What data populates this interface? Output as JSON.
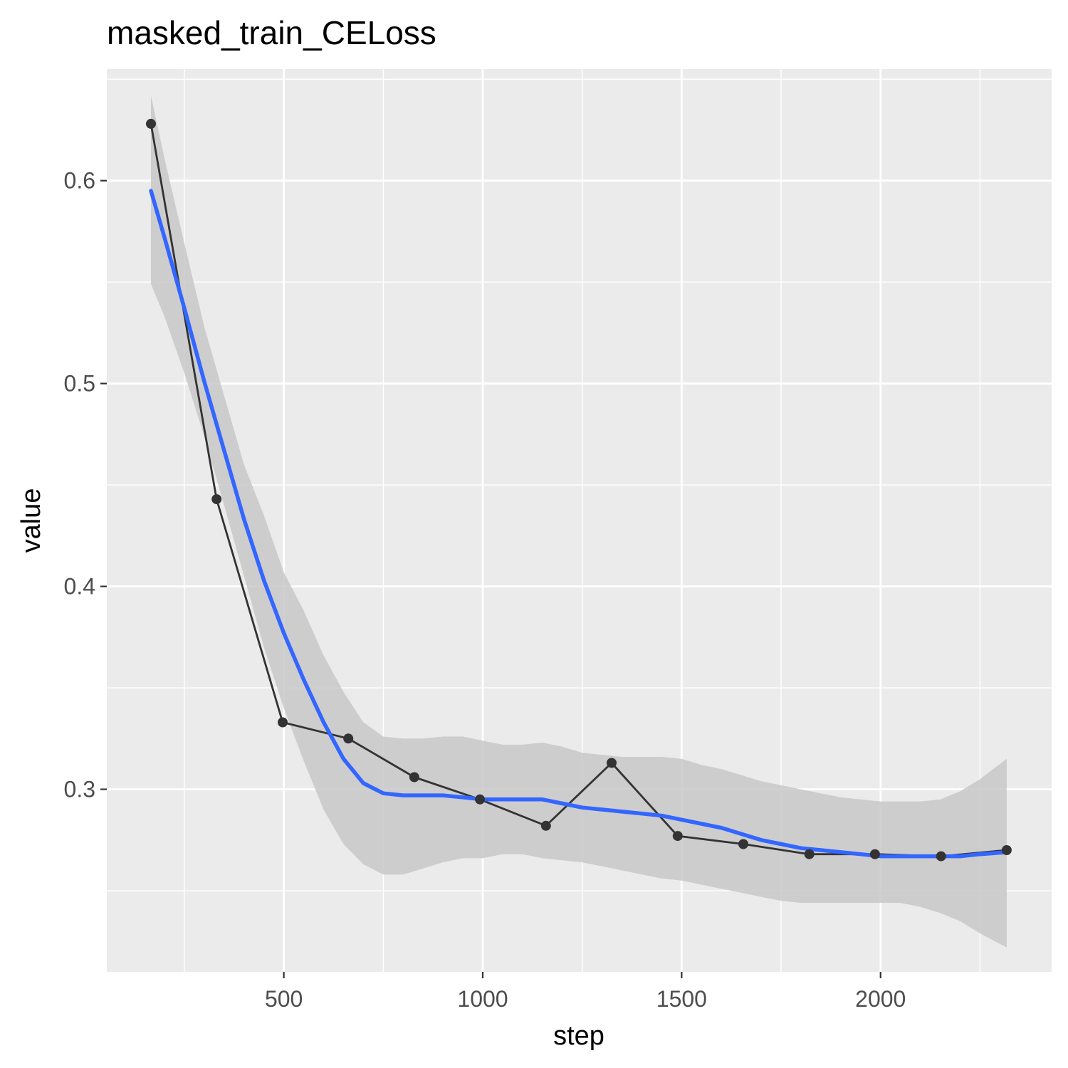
{
  "chart_data": {
    "type": "line",
    "title": "masked_train_CELoss",
    "xlabel": "step",
    "ylabel": "value",
    "xlim": [
      55,
      2430
    ],
    "ylim": [
      0.21,
      0.655
    ],
    "x_ticks": [
      500,
      1000,
      1500,
      2000
    ],
    "y_ticks": [
      0.3,
      0.4,
      0.5,
      0.6
    ],
    "x_tick_labels": [
      "500",
      "1000",
      "1500",
      "2000"
    ],
    "y_tick_labels": [
      "0.3",
      "0.4",
      "0.5",
      "0.6"
    ],
    "x_minor_ticks": [
      250,
      750,
      1250,
      1750,
      2250
    ],
    "y_minor_ticks": [
      0.25,
      0.35,
      0.45,
      0.55,
      0.65
    ],
    "grid": true,
    "legend": "none",
    "colors": {
      "panel_background": "#ebebeb",
      "grid": "#ffffff",
      "points_line": "#333333",
      "smooth_line": "#3366ff",
      "confidence_band": "#c8c8c8"
    },
    "series": [
      {
        "type": "line+points",
        "x": [
          166,
          331,
          497,
          662,
          828,
          993,
          1159,
          1324,
          1490,
          1655,
          1821,
          1986,
          2152,
          2317
        ],
        "y": [
          0.628,
          0.443,
          0.333,
          0.325,
          0.306,
          0.295,
          0.282,
          0.313,
          0.277,
          0.273,
          0.268,
          0.268,
          0.267,
          0.27
        ]
      },
      {
        "type": "smooth",
        "x": [
          166,
          200,
          250,
          300,
          350,
          400,
          450,
          500,
          550,
          600,
          650,
          700,
          750,
          800,
          850,
          900,
          950,
          1000,
          1050,
          1100,
          1150,
          1200,
          1250,
          1300,
          1350,
          1400,
          1450,
          1500,
          1550,
          1600,
          1650,
          1700,
          1750,
          1800,
          1850,
          1900,
          1950,
          2000,
          2050,
          2100,
          2150,
          2200,
          2250,
          2317
        ],
        "y": [
          0.595,
          0.572,
          0.537,
          0.501,
          0.467,
          0.433,
          0.403,
          0.377,
          0.354,
          0.333,
          0.315,
          0.303,
          0.298,
          0.297,
          0.297,
          0.297,
          0.296,
          0.295,
          0.295,
          0.295,
          0.295,
          0.293,
          0.291,
          0.29,
          0.289,
          0.288,
          0.287,
          0.285,
          0.283,
          0.281,
          0.278,
          0.275,
          0.273,
          0.271,
          0.27,
          0.269,
          0.268,
          0.267,
          0.267,
          0.267,
          0.267,
          0.267,
          0.268,
          0.269
        ],
        "lower": [
          0.549,
          0.533,
          0.505,
          0.474,
          0.44,
          0.405,
          0.37,
          0.34,
          0.314,
          0.29,
          0.273,
          0.263,
          0.258,
          0.258,
          0.261,
          0.264,
          0.266,
          0.266,
          0.268,
          0.268,
          0.266,
          0.265,
          0.264,
          0.262,
          0.26,
          0.258,
          0.256,
          0.255,
          0.253,
          0.251,
          0.249,
          0.247,
          0.245,
          0.244,
          0.244,
          0.244,
          0.244,
          0.244,
          0.244,
          0.242,
          0.239,
          0.235,
          0.229,
          0.222
        ],
        "upper": [
          0.642,
          0.611,
          0.569,
          0.528,
          0.494,
          0.46,
          0.435,
          0.407,
          0.388,
          0.366,
          0.348,
          0.333,
          0.326,
          0.325,
          0.325,
          0.326,
          0.326,
          0.324,
          0.322,
          0.322,
          0.323,
          0.321,
          0.318,
          0.317,
          0.316,
          0.316,
          0.316,
          0.315,
          0.312,
          0.31,
          0.307,
          0.304,
          0.302,
          0.3,
          0.298,
          0.296,
          0.295,
          0.294,
          0.294,
          0.294,
          0.295,
          0.299,
          0.305,
          0.315
        ]
      }
    ]
  }
}
